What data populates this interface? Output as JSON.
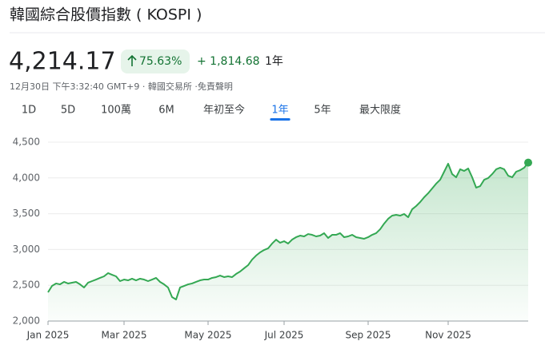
{
  "header": {
    "title": "韓國綜合股價指數 ( KOSPI )",
    "price": "4,214.17",
    "change_percent": "75.63%",
    "change_absolute": "+ 1,814.68",
    "change_period": "1年",
    "timestamp": "12月30日 下午3:32:40 GMT+9 · 韓國交易所 ·免責聲明"
  },
  "tabs": {
    "items": [
      "1D",
      "5D",
      "100萬",
      "6M",
      "年初至今",
      "1年",
      "5年",
      "最大限度"
    ],
    "selected": 5
  },
  "chart_data": {
    "type": "line",
    "color": "#34a853",
    "categories": [
      "Jan 2025",
      null,
      null,
      null,
      null,
      null,
      null,
      null,
      null,
      null,
      null,
      null,
      null,
      null,
      null,
      null,
      null,
      null,
      null,
      "Mar 2025",
      null,
      null,
      null,
      null,
      null,
      null,
      null,
      null,
      null,
      null,
      null,
      null,
      null,
      null,
      null,
      null,
      null,
      null,
      null,
      null,
      "May 2025",
      null,
      null,
      null,
      null,
      null,
      null,
      null,
      null,
      null,
      null,
      null,
      null,
      null,
      null,
      null,
      null,
      null,
      null,
      "Jul 2025",
      null,
      null,
      null,
      null,
      null,
      null,
      null,
      null,
      null,
      null,
      null,
      null,
      null,
      null,
      null,
      null,
      null,
      null,
      null,
      null,
      "Sep 2025",
      null,
      null,
      null,
      null,
      null,
      null,
      null,
      null,
      null,
      null,
      null,
      null,
      null,
      null,
      null,
      null,
      null,
      null,
      null,
      "Nov 2025",
      null,
      null,
      null,
      null,
      null,
      null,
      null,
      null,
      null,
      null,
      null,
      null,
      null,
      null,
      null,
      null,
      null,
      null,
      null,
      null
    ],
    "values": [
      2402,
      2491,
      2525,
      2513,
      2547,
      2525,
      2536,
      2547,
      2513,
      2469,
      2536,
      2558,
      2580,
      2603,
      2625,
      2670,
      2647,
      2625,
      2558,
      2580,
      2569,
      2592,
      2569,
      2592,
      2580,
      2558,
      2580,
      2603,
      2547,
      2513,
      2469,
      2335,
      2301,
      2469,
      2491,
      2513,
      2525,
      2547,
      2569,
      2580,
      2580,
      2603,
      2614,
      2636,
      2614,
      2625,
      2614,
      2658,
      2692,
      2737,
      2781,
      2859,
      2915,
      2960,
      2993,
      3016,
      3083,
      3138,
      3094,
      3116,
      3083,
      3138,
      3172,
      3194,
      3183,
      3216,
      3205,
      3183,
      3194,
      3228,
      3161,
      3205,
      3205,
      3228,
      3172,
      3183,
      3205,
      3172,
      3161,
      3150,
      3172,
      3205,
      3228,
      3283,
      3362,
      3429,
      3473,
      3484,
      3473,
      3496,
      3451,
      3562,
      3607,
      3663,
      3730,
      3786,
      3853,
      3920,
      3975,
      4087,
      4199,
      4054,
      4009,
      4121,
      4098,
      4132,
      4009,
      3864,
      3886,
      3975,
      3998,
      4054,
      4121,
      4143,
      4121,
      4031,
      4009,
      4087,
      4109,
      4143,
      4214.17
    ],
    "ylim": [
      2000,
      4500
    ],
    "yticks": [
      {
        "value": 2000,
        "label": "2,000"
      },
      {
        "value": 2500,
        "label": "2,500"
      },
      {
        "value": 3000,
        "label": "3,000"
      },
      {
        "value": 3500,
        "label": "3,500"
      },
      {
        "value": 4000,
        "label": "4,000"
      },
      {
        "value": 4500,
        "label": "4,500"
      }
    ],
    "grid": true
  }
}
